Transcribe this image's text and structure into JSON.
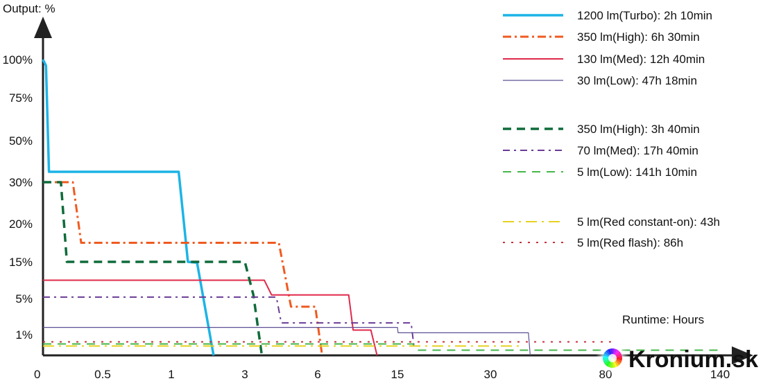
{
  "chart_data": {
    "type": "line",
    "title": "",
    "ylabel": "Output: %",
    "xlabel": "Runtime: Hours",
    "x_ticks": [
      "0",
      "0.5",
      "1",
      "3",
      "6",
      "15",
      "30",
      "80",
      "140"
    ],
    "y_ticks": [
      "100%",
      "75%",
      "50%",
      "30%",
      "20%",
      "15%",
      "5%",
      "1%"
    ],
    "grid": false,
    "legend_position": "top-right",
    "series": [
      {
        "name": "1200 lm(Turbo): 2h 10min",
        "color": "#1cb4e6",
        "style": "solid-thick",
        "points": [
          [
            0,
            100
          ],
          [
            0.025,
            96
          ],
          [
            0.05,
            35
          ],
          [
            1.2,
            35
          ],
          [
            1.45,
            15
          ],
          [
            1.7,
            14.8
          ],
          [
            2.15,
            0
          ]
        ]
      },
      {
        "name": "350 lm(High): 6h 30min",
        "color": "#ef5a1f",
        "style": "dashdot-thick",
        "points": [
          [
            0,
            30
          ],
          [
            0.25,
            30
          ],
          [
            0.32,
            17.5
          ],
          [
            4.4,
            17.5
          ],
          [
            4.9,
            4.1
          ],
          [
            5.9,
            4.1
          ],
          [
            6.5,
            0
          ]
        ]
      },
      {
        "name": "130 lm(Med): 12h 40min",
        "color": "#e0294a",
        "style": "solid",
        "points": [
          [
            0,
            10
          ],
          [
            3.8,
            10
          ],
          [
            4.1,
            6
          ],
          [
            9.5,
            6
          ],
          [
            10,
            1.5
          ],
          [
            12,
            1.5
          ],
          [
            12.7,
            0
          ]
        ]
      },
      {
        "name": "30 lm(Low): 47h 18min",
        "color": "#5c4f95",
        "style": "solid-thin",
        "points": [
          [
            0,
            1.8
          ],
          [
            15,
            1.8
          ],
          [
            15.1,
            1.2
          ],
          [
            46.5,
            1.2
          ],
          [
            47.3,
            0
          ]
        ]
      },
      {
        "name": "350 lm(High): 3h 40min",
        "color": "#0f6b3a",
        "style": "dash-thick",
        "points": [
          [
            0,
            30
          ],
          [
            0.15,
            30
          ],
          [
            0.2,
            15
          ],
          [
            3,
            15
          ],
          [
            3.35,
            6
          ],
          [
            3.7,
            0
          ]
        ]
      },
      {
        "name": "70 lm(Med): 17h 40min",
        "color": "#6a3a95",
        "style": "dash",
        "points": [
          [
            0,
            5.4
          ],
          [
            4.3,
            5.4
          ],
          [
            4.5,
            2.3
          ],
          [
            17.2,
            2.3
          ],
          [
            17.67,
            0.4
          ]
        ]
      },
      {
        "name": "5 lm(Low): 141h 10min",
        "color": "#45b549",
        "style": "longdash",
        "points": [
          [
            0,
            0.55
          ],
          [
            17.5,
            0.55
          ],
          [
            18,
            0.25
          ],
          [
            141.2,
            0.25
          ]
        ]
      },
      {
        "name": "5 lm(Red constant-on): 43h",
        "color": "#e6d21e",
        "style": "longdashdot",
        "points": [
          [
            0,
            0.45
          ],
          [
            43,
            0.45
          ]
        ]
      },
      {
        "name": "5 lm(Red flash): 86h",
        "color": "#c8303a",
        "style": "dot",
        "points": [
          [
            0,
            0.65
          ],
          [
            86,
            0.65
          ]
        ]
      }
    ]
  },
  "brand": {
    "logo_icon": "color-wheel-icon",
    "name": "Kronium.sk"
  }
}
